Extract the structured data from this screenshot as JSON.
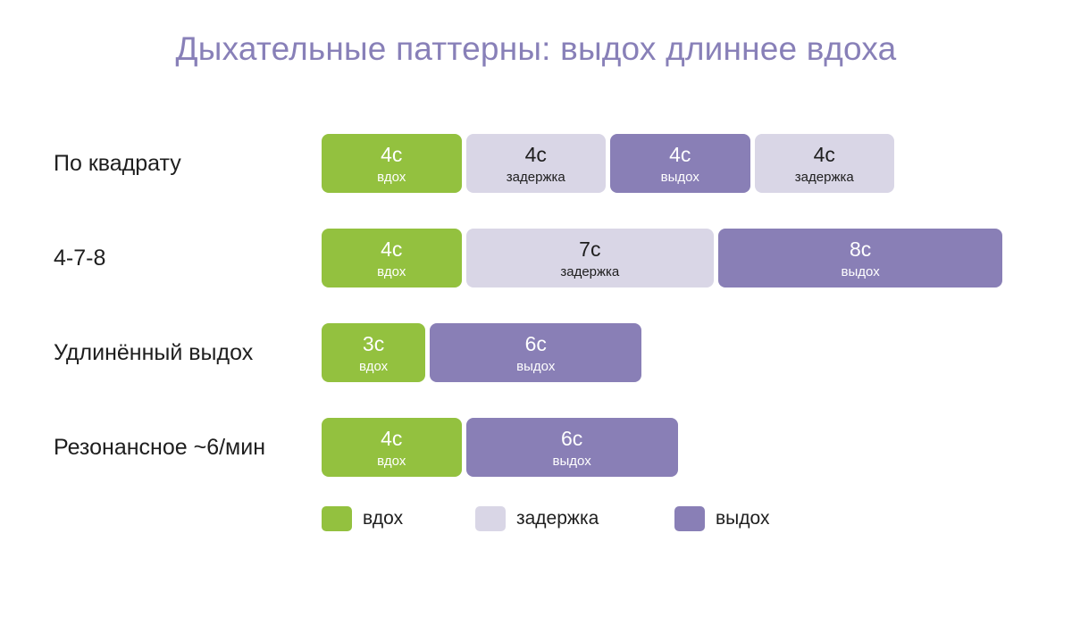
{
  "title": "Дыхательные паттерны: выдох длиннее вдоха",
  "colors": {
    "inhale": "#93c13f",
    "hold": "#d9d6e6",
    "exhale": "#897fb6",
    "title": "#8880b8"
  },
  "unit_suffix": "с",
  "rows": [
    {
      "label": "По квадрату",
      "phases": [
        {
          "type": "inhale",
          "duration": 4,
          "duration_label": "4с",
          "label": "вдох"
        },
        {
          "type": "hold",
          "duration": 4,
          "duration_label": "4с",
          "label": "задержка"
        },
        {
          "type": "exhale",
          "duration": 4,
          "duration_label": "4с",
          "label": "выдох"
        },
        {
          "type": "hold",
          "duration": 4,
          "duration_label": "4с",
          "label": "задержка"
        }
      ]
    },
    {
      "label": "4-7-8",
      "phases": [
        {
          "type": "inhale",
          "duration": 4,
          "duration_label": "4с",
          "label": "вдох"
        },
        {
          "type": "hold",
          "duration": 7,
          "duration_label": "7с",
          "label": "задержка"
        },
        {
          "type": "exhale",
          "duration": 8,
          "duration_label": "8с",
          "label": "выдох"
        }
      ]
    },
    {
      "label": "Удлинённый выдох",
      "phases": [
        {
          "type": "inhale",
          "duration": 3,
          "duration_label": "3с",
          "label": "вдох"
        },
        {
          "type": "exhale",
          "duration": 6,
          "duration_label": "6с",
          "label": "выдох"
        }
      ]
    },
    {
      "label": "Резонансное ~6/мин",
      "phases": [
        {
          "type": "inhale",
          "duration": 4,
          "duration_label": "4с",
          "label": "вдох"
        },
        {
          "type": "exhale",
          "duration": 6,
          "duration_label": "6с",
          "label": "выдох"
        }
      ]
    }
  ],
  "legend": [
    {
      "type": "inhale",
      "label": "вдох"
    },
    {
      "type": "hold",
      "label": "задержка"
    },
    {
      "type": "exhale",
      "label": "выдох"
    }
  ]
}
